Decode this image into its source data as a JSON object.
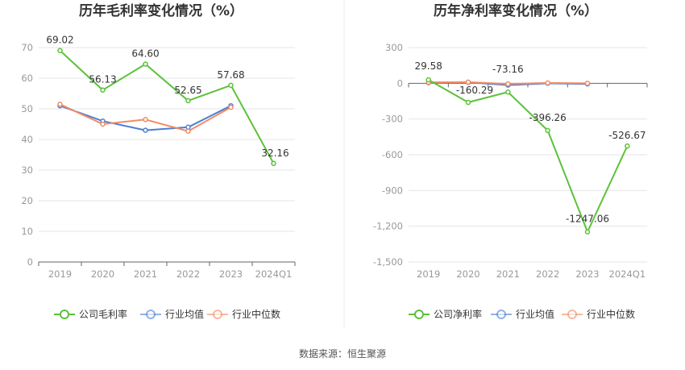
{
  "colors": {
    "company": "#5cc23a",
    "industry_avg": "#4a7fd6",
    "industry_median": "#f28c63",
    "grid": "#e6e6e6",
    "axis": "#666666"
  },
  "source": "数据来源：恒生聚源",
  "chart_data": [
    {
      "type": "line",
      "title": "历年毛利率变化情况（%）",
      "categories": [
        "2019",
        "2020",
        "2021",
        "2022",
        "2023",
        "2024Q1"
      ],
      "ylim": [
        0,
        70
      ],
      "yticks": [
        0,
        10,
        20,
        30,
        40,
        50,
        60,
        70
      ],
      "ytick_labels": [
        "0",
        "10",
        "20",
        "30",
        "40",
        "50",
        "60",
        "70"
      ],
      "grid": true,
      "legend_position": "bottom",
      "series": [
        {
          "name": "公司毛利率",
          "key": "company",
          "values": [
            69.02,
            56.13,
            64.6,
            52.65,
            57.68,
            32.16
          ],
          "labels": [
            "69.02",
            "56.13",
            "64.60",
            "52.65",
            "57.68",
            "32.16"
          ]
        },
        {
          "name": "行业均值",
          "key": "industry_avg",
          "values": [
            51.0,
            46.0,
            43.0,
            44.0,
            51.0,
            null
          ]
        },
        {
          "name": "行业中位数",
          "key": "industry_median",
          "values": [
            51.5,
            45.0,
            46.5,
            42.7,
            50.5,
            null
          ]
        }
      ]
    },
    {
      "type": "line",
      "title": "历年净利率变化情况（%）",
      "categories": [
        "2019",
        "2020",
        "2021",
        "2022",
        "2023",
        "2024Q1"
      ],
      "ylim": [
        -1500,
        300
      ],
      "yticks": [
        300,
        0,
        -300,
        -600,
        -900,
        -1200,
        -1500
      ],
      "ytick_labels": [
        "300",
        "0",
        "-300",
        "-600",
        "-900",
        "-1,200",
        "-1,500"
      ],
      "grid": true,
      "legend_position": "bottom",
      "series": [
        {
          "name": "公司净利率",
          "key": "company",
          "values": [
            29.58,
            -160.29,
            -73.16,
            -396.26,
            -1247.06,
            -526.67
          ],
          "labels": [
            "29.58",
            "-160.29",
            "-73.16",
            "-396.26",
            "-1247.06",
            "-526.67"
          ]
        },
        {
          "name": "行业均值",
          "key": "industry_avg",
          "values": [
            5,
            8,
            -15,
            0,
            -5,
            null
          ]
        },
        {
          "name": "行业中位数",
          "key": "industry_median",
          "values": [
            8,
            10,
            -5,
            3,
            0,
            null
          ]
        }
      ]
    }
  ]
}
